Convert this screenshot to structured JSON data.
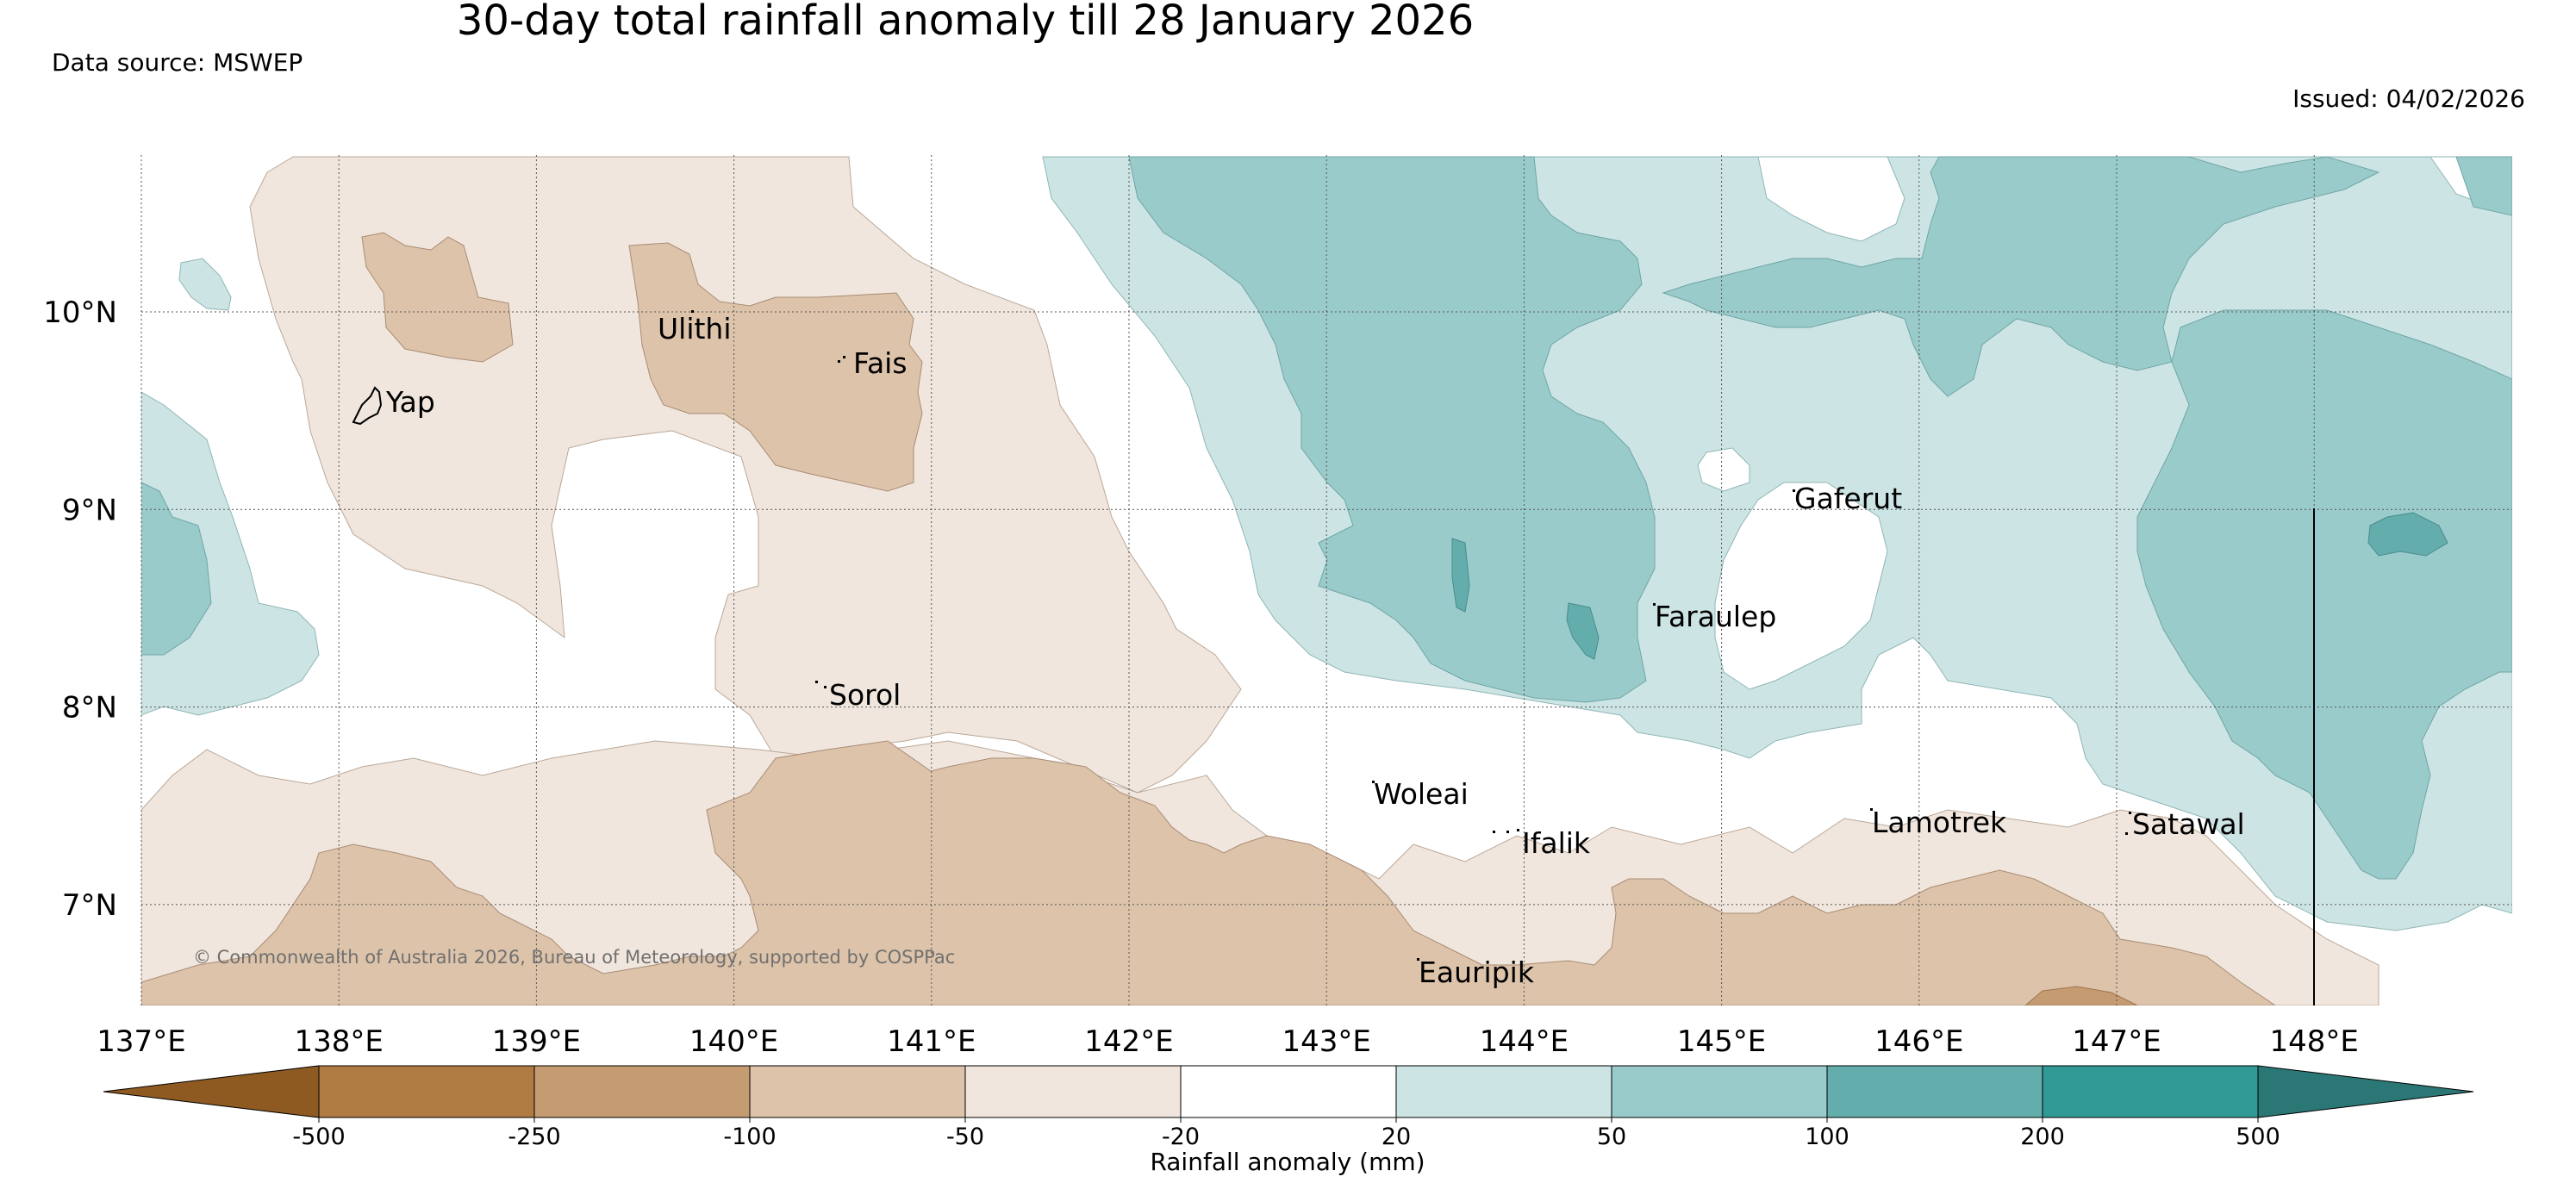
{
  "title": "30-day total rainfall anomaly till 28 January 2026",
  "data_source": "Data source: MSWEP",
  "issued": "Issued: 04/02/2026",
  "copyright": "© Commonwealth of Australia 2026, Bureau of Meteorology, supported by COSPPac",
  "map": {
    "lon_labels": [
      "137°E",
      "138°E",
      "139°E",
      "140°E",
      "141°E",
      "142°E",
      "143°E",
      "144°E",
      "145°E",
      "146°E",
      "147°E",
      "148°E"
    ],
    "lat_labels": [
      "10°N",
      "9°N",
      "8°N",
      "7°N"
    ],
    "places": [
      {
        "name": "Yap"
      },
      {
        "name": "Ulithi"
      },
      {
        "name": "Fais"
      },
      {
        "name": "Gaferut"
      },
      {
        "name": "Faraulep"
      },
      {
        "name": "Sorol"
      },
      {
        "name": "Woleai"
      },
      {
        "name": "Ifalik"
      },
      {
        "name": "Lamotrek"
      },
      {
        "name": "Satawal"
      },
      {
        "name": "Eauripik"
      }
    ]
  },
  "colorbar": {
    "label": "Rainfall anomaly (mm)",
    "ticks": [
      "-500",
      "-250",
      "-100",
      "-50",
      "-20",
      "20",
      "50",
      "100",
      "200",
      "500"
    ],
    "colors": [
      "#8e5a22",
      "#b07a43",
      "#c59b72",
      "#dcc3aa",
      "#f0e6dd",
      "#ffffff",
      "#cde4e4",
      "#9acbcb",
      "#64adad",
      "#319a97",
      "#2a7775"
    ]
  }
}
